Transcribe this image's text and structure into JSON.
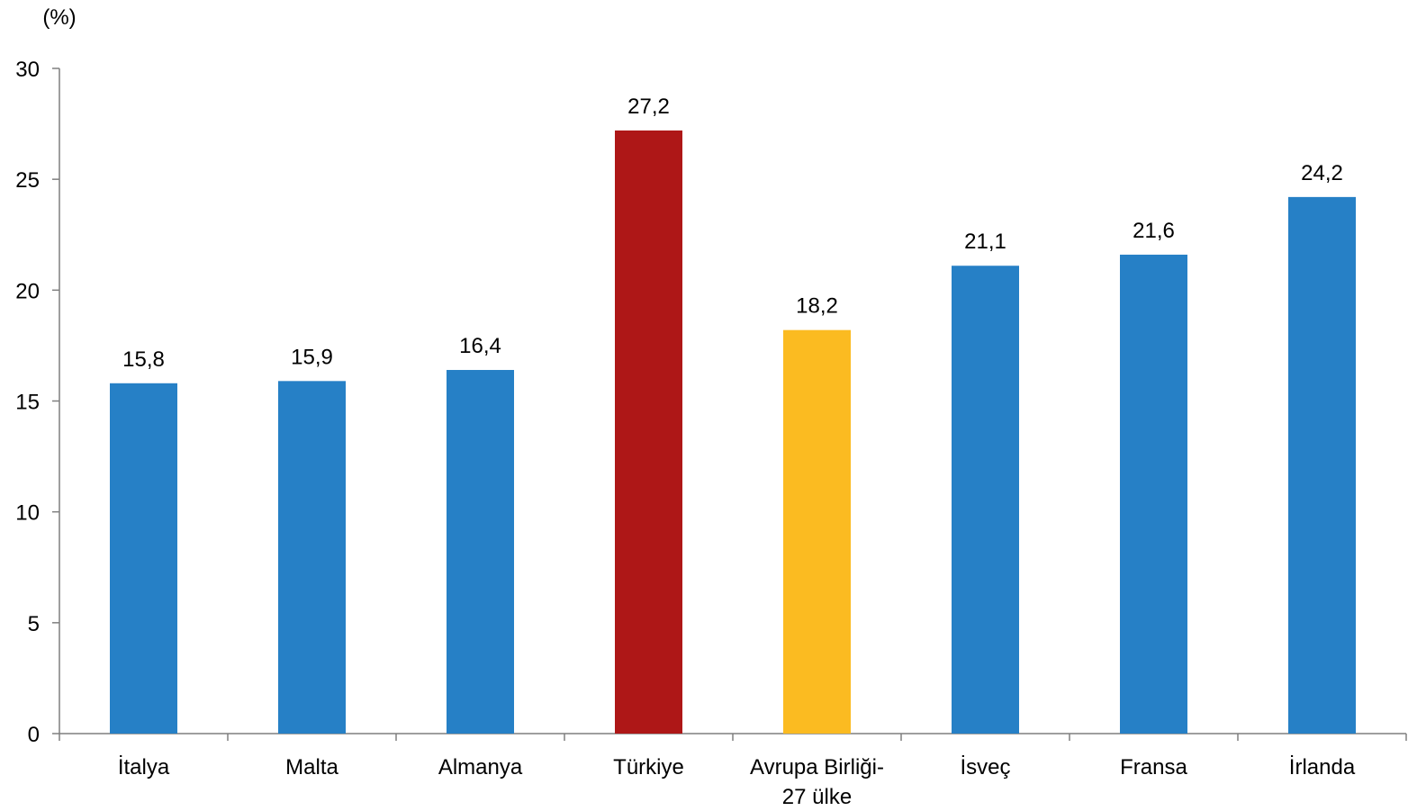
{
  "chart_data": {
    "type": "bar",
    "unit_label": "(%)",
    "categories": [
      [
        "İtalya"
      ],
      [
        "Malta"
      ],
      [
        "Almanya"
      ],
      [
        "Türkiye"
      ],
      [
        "Avrupa Birliği-",
        "27 ülke"
      ],
      [
        "İsveç"
      ],
      [
        "Fransa"
      ],
      [
        "İrlanda"
      ]
    ],
    "values": [
      15.8,
      15.9,
      16.4,
      27.2,
      18.2,
      21.1,
      21.6,
      24.2
    ],
    "value_labels": [
      "15,8",
      "15,9",
      "16,4",
      "27,2",
      "18,2",
      "21,1",
      "21,6",
      "24,2"
    ],
    "bar_colors": [
      "#2680C6",
      "#2680C6",
      "#2680C6",
      "#AE1717",
      "#FBBB21",
      "#2680C6",
      "#2680C6",
      "#2680C6"
    ],
    "ylim": [
      0,
      30
    ],
    "yticks": [
      0,
      5,
      10,
      15,
      20,
      25,
      30
    ],
    "grid": false,
    "legend": "none"
  }
}
